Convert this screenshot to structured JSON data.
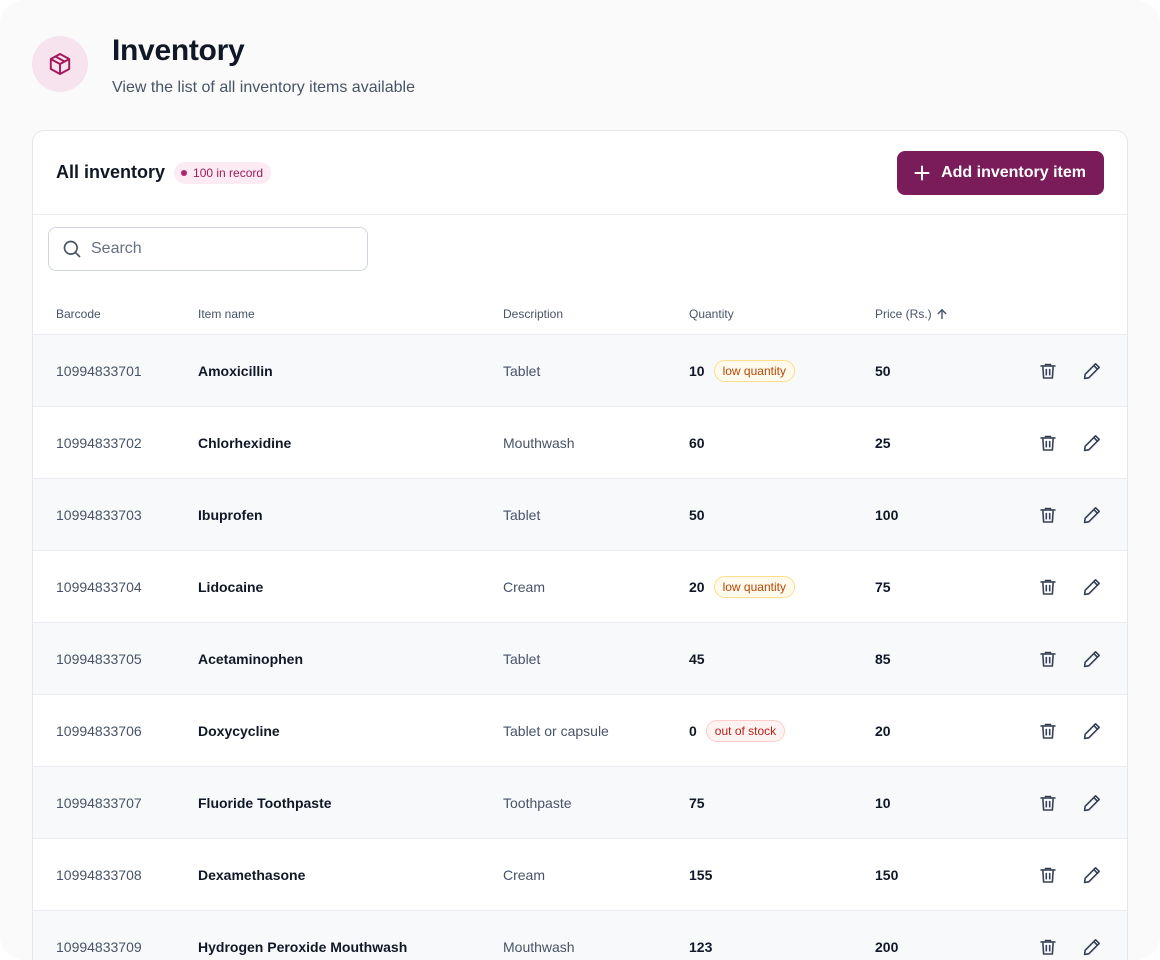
{
  "header": {
    "title": "Inventory",
    "subtitle": "View the list of all inventory items available",
    "icon": "box-icon"
  },
  "card": {
    "title": "All inventory",
    "record_count_label": "100 in record",
    "add_button_label": "Add inventory item"
  },
  "search": {
    "placeholder": "Search",
    "value": ""
  },
  "table": {
    "columns": {
      "barcode": "Barcode",
      "name": "Item name",
      "description": "Description",
      "quantity": "Quantity",
      "price": "Price (Rs.)"
    },
    "sort_column": "price",
    "sort_direction": "ascending",
    "rows": [
      {
        "barcode": "10994833701",
        "name": "Amoxicillin",
        "description": "Tablet",
        "quantity": "10",
        "status": "low quantity",
        "status_type": "warn",
        "price": "50"
      },
      {
        "barcode": "10994833702",
        "name": "Chlorhexidine",
        "description": "Mouthwash",
        "quantity": "60",
        "status": "",
        "status_type": "",
        "price": "25"
      },
      {
        "barcode": "10994833703",
        "name": "Ibuprofen",
        "description": "Tablet",
        "quantity": "50",
        "status": "",
        "status_type": "",
        "price": "100"
      },
      {
        "barcode": "10994833704",
        "name": "Lidocaine",
        "description": "Cream",
        "quantity": "20",
        "status": "low quantity",
        "status_type": "warn",
        "price": "75"
      },
      {
        "barcode": "10994833705",
        "name": "Acetaminophen",
        "description": "Tablet",
        "quantity": "45",
        "status": "",
        "status_type": "",
        "price": "85"
      },
      {
        "barcode": "10994833706",
        "name": "Doxycycline",
        "description": "Tablet or capsule",
        "quantity": "0",
        "status": "out of stock",
        "status_type": "err",
        "price": "20"
      },
      {
        "barcode": "10994833707",
        "name": "Fluoride Toothpaste",
        "description": "Toothpaste",
        "quantity": "75",
        "status": "",
        "status_type": "",
        "price": "10"
      },
      {
        "barcode": "10994833708",
        "name": "Dexamethasone",
        "description": "Cream",
        "quantity": "155",
        "status": "",
        "status_type": "",
        "price": "150"
      },
      {
        "barcode": "10994833709",
        "name": "Hydrogen Peroxide Mouthwash",
        "description": "Mouthwash",
        "quantity": "123",
        "status": "",
        "status_type": "",
        "price": "200"
      }
    ]
  },
  "colors": {
    "brand": "#7a1b5a",
    "brand_light": "#f6e3ee",
    "warning": "#b54708",
    "error": "#b42318"
  }
}
